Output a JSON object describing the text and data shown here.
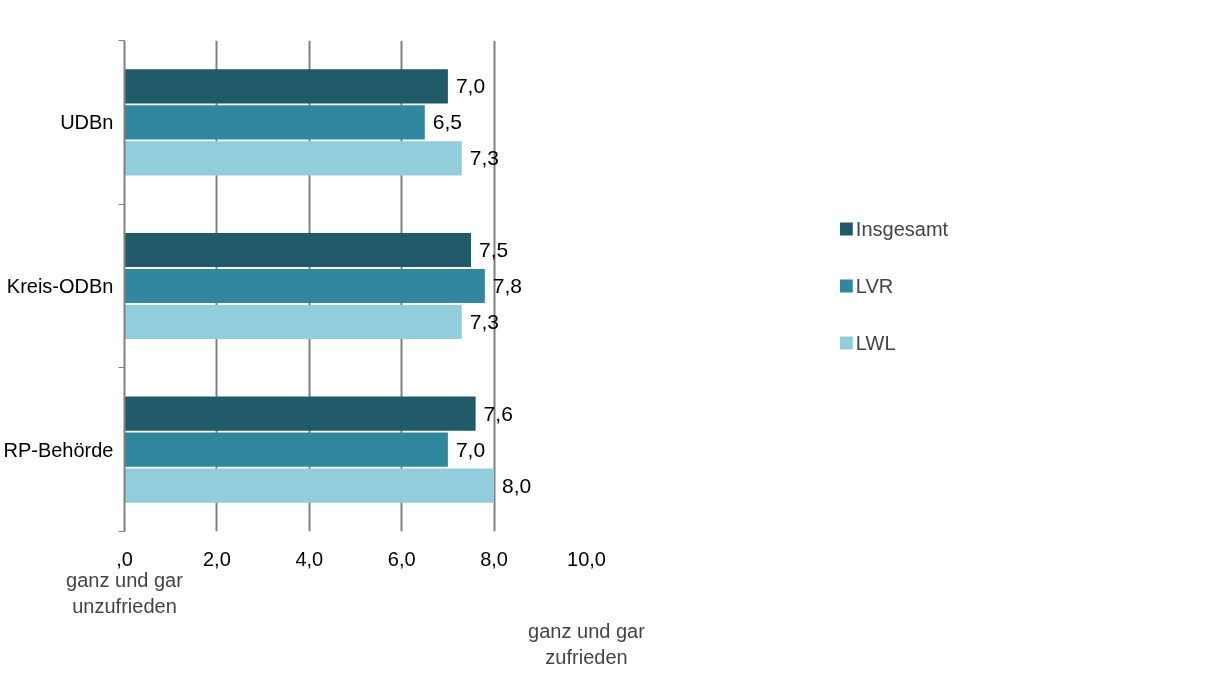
{
  "chart_data": {
    "type": "bar",
    "orientation": "horizontal",
    "categories": [
      "UDBn",
      "Kreis-ODBn",
      "RP-Behörde"
    ],
    "series": [
      {
        "name": "Insgesamt",
        "color": "#215a68",
        "values": [
          7.0,
          7.5,
          7.6
        ],
        "value_labels": [
          "7,0",
          "7,5",
          "7,6"
        ]
      },
      {
        "name": "LVR",
        "color": "#31879d",
        "values": [
          6.5,
          7.8,
          7.0
        ],
        "value_labels": [
          "6,5",
          "7,8",
          "7,0"
        ]
      },
      {
        "name": "LWL",
        "color": "#92cddc",
        "values": [
          7.3,
          7.3,
          8.0
        ],
        "value_labels": [
          "7,3",
          "7,3",
          "8,0"
        ]
      }
    ],
    "xlim": [
      0,
      10
    ],
    "xticks": [
      {
        "value": 0,
        "label": ",0"
      },
      {
        "value": 2,
        "label": "2,0"
      },
      {
        "value": 4,
        "label": "4,0"
      },
      {
        "value": 6,
        "label": "6,0"
      },
      {
        "value": 8,
        "label": "8,0"
      },
      {
        "value": 10,
        "label": "10,0"
      }
    ],
    "grid": "x",
    "legend": "right",
    "annotations": [
      "ganz und gar unzufrieden",
      "ganz und gar zufrieden"
    ]
  }
}
